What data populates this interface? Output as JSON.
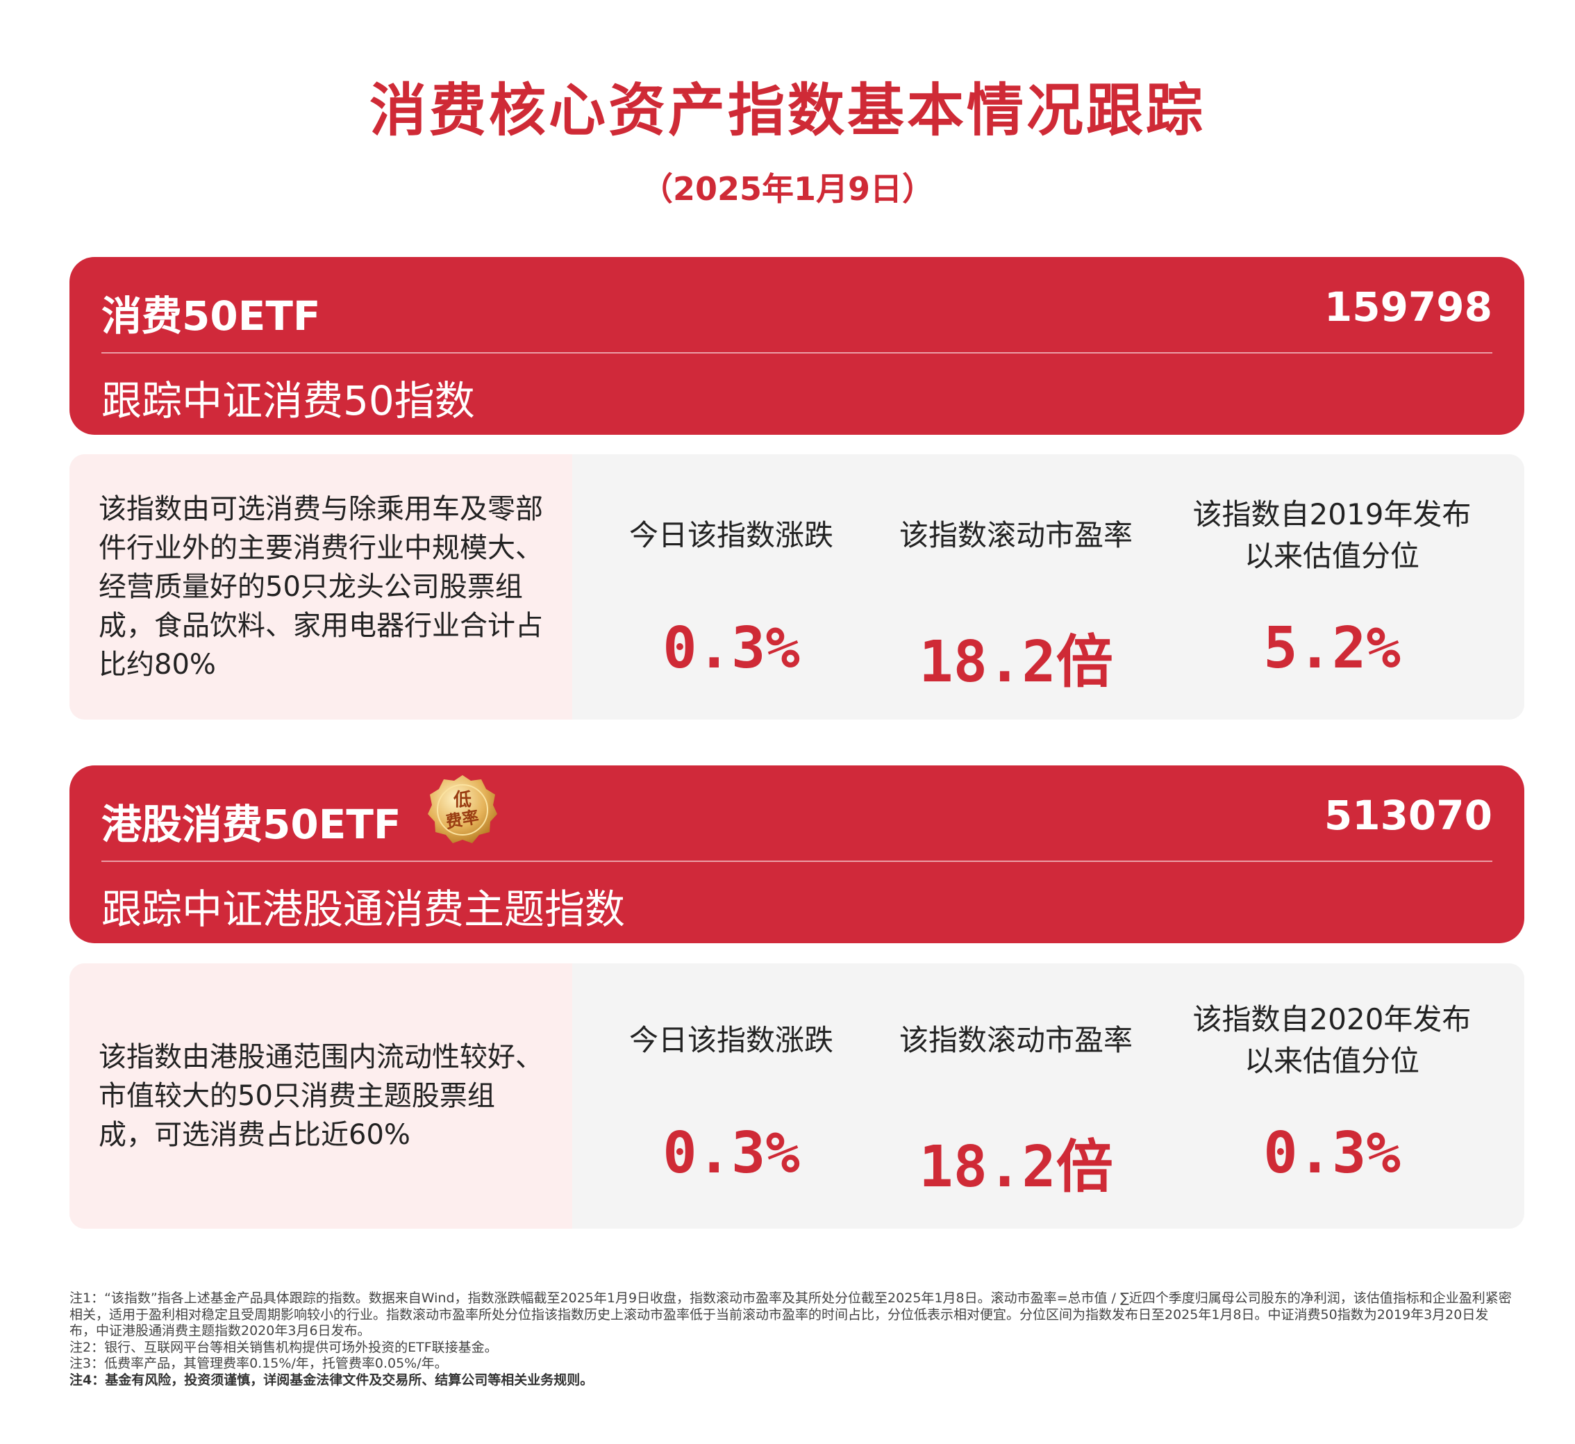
{
  "title": "消费核心资产指数基本情况跟踪",
  "subtitle": "（2025年1月9日）",
  "colors": {
    "accent": "#d0293a",
    "desc_bg": "#fdeeee",
    "panel_bg": "#f4f4f4"
  },
  "funds": [
    {
      "name": "消费50ETF",
      "code": "159798",
      "tracking": "跟踪中证消费50指数",
      "description": "该指数由可选消费与除乘用车及零部件行业外的主要消费行业中规模大、经营质量好的50只龙头公司股票组成，食品饮料、家用电器行业合计占比约80%",
      "metrics": [
        {
          "label": "今日该指数涨跌",
          "value": "0.3%"
        },
        {
          "label": "该指数滚动市盈率",
          "value": "18.2倍"
        },
        {
          "label": "该指数自2019年发布以来估值分位",
          "value": "5.2%"
        }
      ]
    },
    {
      "name": "港股消费50ETF",
      "code": "513070",
      "tracking": "跟踪中证港股通消费主题指数",
      "badge": "低费率",
      "description": "该指数由港股通范围内流动性较好、市值较大的50只消费主题股票组成，可选消费占比近60%",
      "metrics": [
        {
          "label": "今日该指数涨跌",
          "value": "0.3%"
        },
        {
          "label": "该指数滚动市盈率",
          "value": "18.2倍"
        },
        {
          "label": "该指数自2020年发布以来估值分位",
          "value": "0.3%"
        }
      ]
    }
  ],
  "notes": [
    "注1：“该指数”指各上述基金产品具体跟踪的指数。数据来自Wind，指数涨跌幅截至2025年1月9日收盘，指数滚动市盈率及其所处分位截至2025年1月8日。滚动市盈率=总市值 / ∑近四个季度归属母公司股东的净利润，该估值指标和企业盈利紧密相关，适用于盈利相对稳定且受周期影响较小的行业。指数滚动市盈率所处分位指该指数历史上滚动市盈率低于当前滚动市盈率的时间占比，分位低表示相对便宜。分位区间为指数发布日至2025年1月8日。中证消费50指数为2019年3月20日发布，中证港股通消费主题指数2020年3月6日发布。",
    "注2：银行、互联网平台等相关销售机构提供可场外投资的ETF联接基金。",
    "注3：低费率产品，其管理费率0.15%/年，托管费率0.05%/年。",
    "注4：基金有风险，投资须谨慎，详阅基金法律文件及交易所、结算公司等相关业务规则。"
  ]
}
